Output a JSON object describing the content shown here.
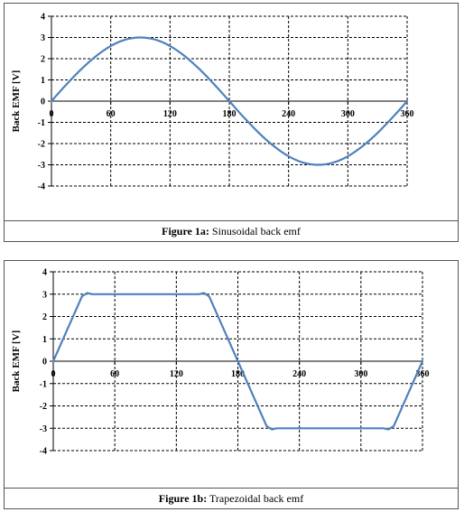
{
  "chart_data": [
    {
      "type": "line",
      "title": "",
      "xlabel": "",
      "ylabel": "Back EMF [V]",
      "xlim": [
        0,
        360
      ],
      "ylim": [
        -4,
        4
      ],
      "x_ticks": [
        "0",
        "60",
        "120",
        "180",
        "240",
        "300",
        "360"
      ],
      "y_ticks": [
        "4",
        "3",
        "2",
        "1",
        "0",
        "-1",
        "-2",
        "-3",
        "-4"
      ],
      "grid": true,
      "series": [
        {
          "x": [
            0,
            15,
            30,
            45,
            60,
            75,
            90,
            105,
            120,
            135,
            150,
            165,
            180,
            195,
            210,
            225,
            240,
            255,
            270,
            285,
            300,
            315,
            330,
            345,
            360
          ],
          "values": [
            0,
            0.78,
            1.5,
            2.12,
            2.6,
            2.9,
            3.0,
            2.9,
            2.6,
            2.12,
            1.5,
            0.78,
            0,
            -0.78,
            -1.5,
            -2.12,
            -2.6,
            -2.9,
            -3.0,
            -2.9,
            -2.6,
            -2.12,
            -1.5,
            -0.78,
            0
          ],
          "color": "#4f81bd"
        }
      ],
      "caption_label": "Figure 1a:",
      "caption_text": " Sinusoidal back emf"
    },
    {
      "type": "line",
      "title": "",
      "xlabel": "",
      "ylabel": "Back EMF [V]",
      "xlim": [
        0,
        360
      ],
      "ylim": [
        -4,
        4
      ],
      "x_ticks": [
        "0",
        "60",
        "120",
        "180",
        "240",
        "300",
        "360"
      ],
      "y_ticks": [
        "4",
        "3",
        "2",
        "1",
        "0",
        "-1",
        "-2",
        "-3",
        "-4"
      ],
      "grid": true,
      "series": [
        {
          "x": [
            0,
            28,
            33,
            38,
            142,
            147,
            152,
            180,
            208,
            213,
            218,
            322,
            327,
            332,
            360
          ],
          "values": [
            0,
            2.9,
            3.05,
            3.0,
            3.0,
            3.05,
            2.9,
            0,
            -2.9,
            -3.05,
            -3.0,
            -3.0,
            -3.05,
            -2.9,
            0
          ],
          "color": "#4f81bd"
        }
      ],
      "caption_label": "Figure 1b:",
      "caption_text": " Trapezoidal back emf"
    }
  ]
}
